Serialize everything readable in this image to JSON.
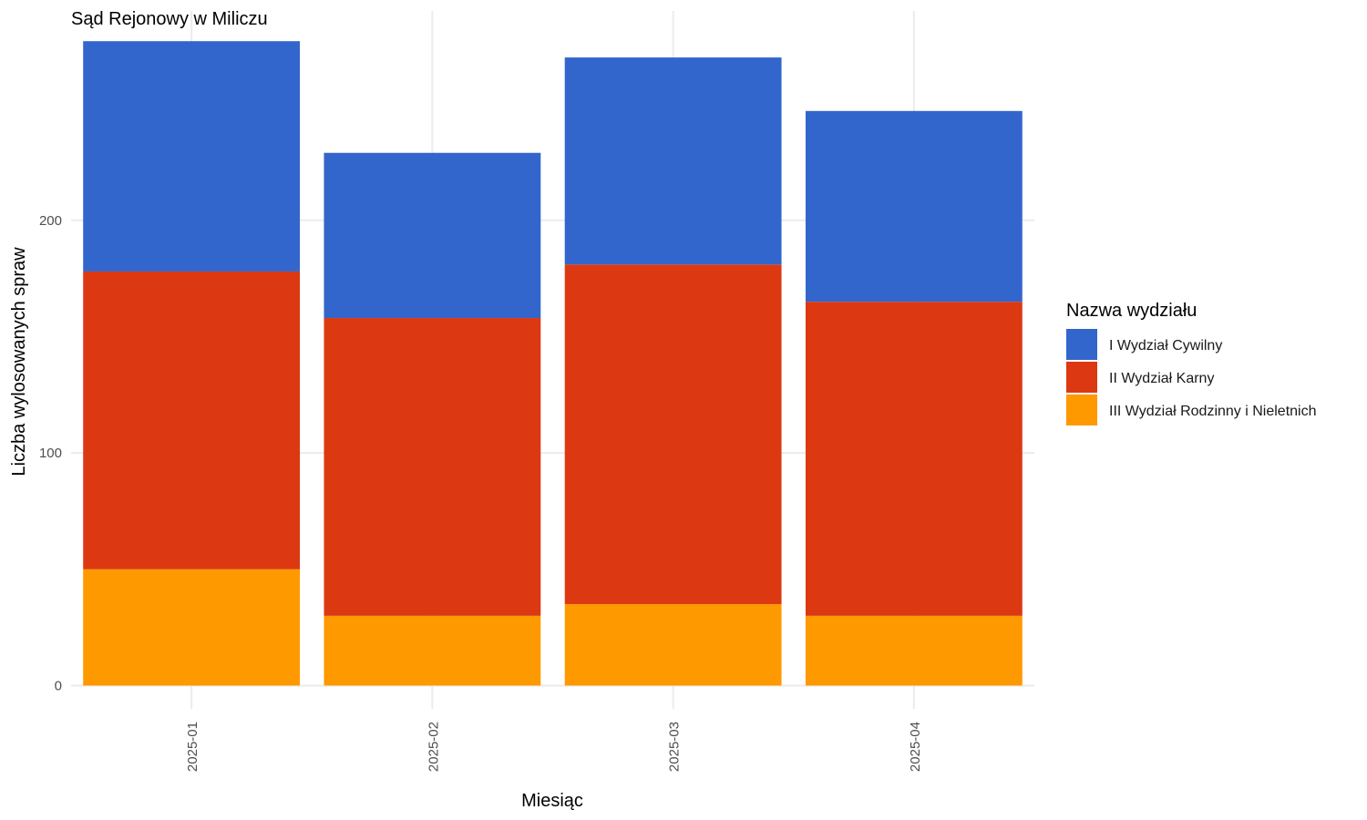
{
  "chart_data": {
    "type": "bar",
    "stacked": true,
    "title": "Sąd Rejonowy w Miliczu",
    "xlabel": "Miesiąc",
    "ylabel": "Liczba wylosowanych spraw",
    "categories": [
      "2025-01",
      "2025-02",
      "2025-03",
      "2025-04"
    ],
    "ylim": [
      -10,
      290
    ],
    "yticks": [
      0,
      100,
      200
    ],
    "grid": true,
    "legend": {
      "title": "Nazwa wydziału",
      "position": "right"
    },
    "series": [
      {
        "name": "III Wydział Rodzinny i Nieletnich",
        "color": "#ff9900",
        "values": [
          50,
          30,
          35,
          30
        ]
      },
      {
        "name": "II Wydział Karny",
        "color": "#dc3912",
        "values": [
          128,
          128,
          146,
          135
        ]
      },
      {
        "name": "I Wydział Cywilny",
        "color": "#3366cc",
        "values": [
          99,
          71,
          89,
          82
        ]
      }
    ],
    "legend_order": [
      "I Wydział Cywilny",
      "II Wydział Karny",
      "III Wydział Rodzinny i Nieletnich"
    ]
  }
}
